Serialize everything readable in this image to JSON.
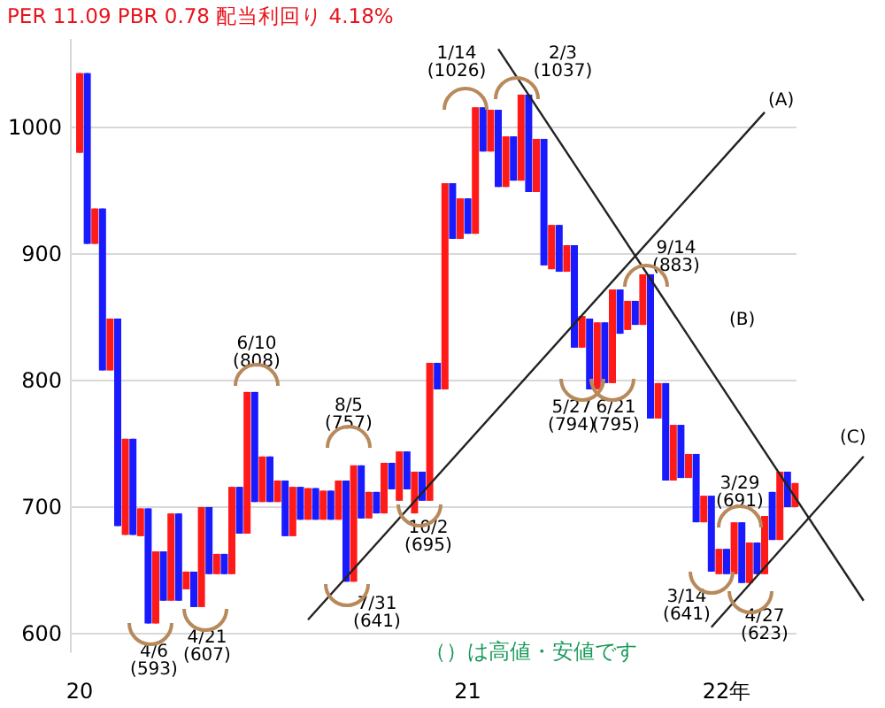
{
  "chart_data": {
    "type": "candlestick",
    "title": "PER 11.09 PBR 0.78 配当利回り 4.18%",
    "categories": [
      "20",
      null,
      null,
      null,
      null,
      null,
      null,
      null,
      null,
      null,
      null,
      null,
      null,
      null,
      null,
      null,
      null,
      null,
      null,
      null,
      null,
      null,
      null,
      null,
      null,
      null,
      null,
      null,
      null,
      null,
      null,
      null,
      null,
      null,
      null,
      null,
      null,
      null,
      null,
      null,
      null,
      null,
      null,
      null,
      null,
      null,
      null,
      null,
      null,
      null,
      null,
      "21",
      null,
      null,
      null,
      null,
      null,
      null,
      null,
      null,
      null,
      null,
      null,
      null,
      null,
      null,
      null,
      null,
      null,
      null,
      null,
      null,
      null,
      null,
      null,
      null,
      null,
      null,
      null,
      null,
      null,
      null,
      null,
      null,
      null,
      "22年",
      null,
      null,
      null,
      null,
      null,
      null,
      null,
      null,
      null,
      null,
      null,
      null,
      null,
      null,
      null,
      null,
      null,
      null
    ],
    "ohlc": [
      [
        980,
        1043,
        980,
        1043
      ],
      [
        1043,
        1043,
        908,
        908
      ],
      [
        908,
        936,
        908,
        936
      ],
      [
        936,
        936,
        808,
        808
      ],
      [
        808,
        849,
        808,
        849
      ],
      [
        849,
        849,
        685,
        685
      ],
      [
        678,
        754,
        678,
        754
      ],
      [
        754,
        754,
        678,
        678
      ],
      [
        677,
        699,
        677,
        699
      ],
      [
        699,
        699,
        608,
        608
      ],
      [
        608,
        665,
        608,
        665
      ],
      [
        665,
        665,
        626,
        626
      ],
      [
        626,
        695,
        626,
        695
      ],
      [
        695,
        695,
        626,
        626
      ],
      [
        635,
        649,
        635,
        649
      ],
      [
        649,
        649,
        621,
        621
      ],
      [
        621,
        700,
        621,
        700
      ],
      [
        700,
        700,
        647,
        647
      ],
      [
        647,
        663,
        647,
        663
      ],
      [
        663,
        663,
        647,
        647
      ],
      [
        647,
        716,
        647,
        716
      ],
      [
        716,
        716,
        679,
        679
      ],
      [
        679,
        791,
        679,
        791
      ],
      [
        791,
        791,
        704,
        704
      ],
      [
        704,
        740,
        704,
        740
      ],
      [
        740,
        740,
        704,
        704
      ],
      [
        704,
        721,
        704,
        721
      ],
      [
        721,
        721,
        677,
        677
      ],
      [
        677,
        716,
        677,
        716
      ],
      [
        716,
        716,
        690,
        690
      ],
      [
        690,
        715,
        690,
        715
      ],
      [
        715,
        715,
        690,
        690
      ],
      [
        690,
        713,
        690,
        713
      ],
      [
        713,
        713,
        690,
        690
      ],
      [
        690,
        721,
        690,
        721
      ],
      [
        721,
        721,
        641,
        641
      ],
      [
        641,
        733,
        641,
        733
      ],
      [
        733,
        733,
        691,
        691
      ],
      [
        691,
        712,
        691,
        712
      ],
      [
        712,
        712,
        695,
        695
      ],
      [
        695,
        735,
        695,
        735
      ],
      [
        735,
        735,
        714,
        714
      ],
      [
        705,
        744,
        705,
        744
      ],
      [
        744,
        744,
        714,
        714
      ],
      [
        695,
        728,
        695,
        728
      ],
      [
        728,
        728,
        705,
        705
      ],
      [
        705,
        814,
        705,
        814
      ],
      [
        814,
        814,
        793,
        793
      ],
      [
        793,
        956,
        793,
        956
      ],
      [
        956,
        956,
        912,
        912
      ],
      [
        912,
        944,
        912,
        944
      ],
      [
        944,
        944,
        916,
        916
      ],
      [
        916,
        1016,
        916,
        1016
      ],
      [
        1016,
        1016,
        981,
        981
      ],
      [
        981,
        1014,
        981,
        1014
      ],
      [
        1014,
        1014,
        953,
        953
      ],
      [
        953,
        993,
        953,
        993
      ],
      [
        993,
        993,
        958,
        958
      ],
      [
        958,
        1026,
        958,
        1026
      ],
      [
        1026,
        1026,
        949,
        949
      ],
      [
        949,
        991,
        949,
        991
      ],
      [
        991,
        991,
        891,
        891
      ],
      [
        888,
        923,
        888,
        923
      ],
      [
        923,
        923,
        886,
        886
      ],
      [
        886,
        907,
        886,
        907
      ],
      [
        907,
        907,
        826,
        826
      ],
      [
        826,
        851,
        826,
        851
      ],
      [
        849,
        849,
        793,
        793
      ],
      [
        793,
        846,
        793,
        846
      ],
      [
        846,
        846,
        798,
        798
      ],
      [
        798,
        872,
        798,
        872
      ],
      [
        872,
        872,
        837,
        837
      ],
      [
        840,
        863,
        840,
        863
      ],
      [
        863,
        863,
        844,
        844
      ],
      [
        844,
        884,
        844,
        884
      ],
      [
        884,
        884,
        770,
        770
      ],
      [
        770,
        798,
        770,
        798
      ],
      [
        798,
        798,
        721,
        721
      ],
      [
        721,
        765,
        721,
        765
      ],
      [
        765,
        765,
        723,
        723
      ],
      [
        723,
        742,
        723,
        742
      ],
      [
        742,
        742,
        688,
        688
      ],
      [
        688,
        709,
        688,
        709
      ],
      [
        709,
        709,
        649,
        649
      ],
      [
        647,
        667,
        647,
        667
      ],
      [
        667,
        667,
        647,
        647
      ],
      [
        647,
        688,
        647,
        688
      ],
      [
        688,
        688,
        640,
        640
      ],
      [
        640,
        672,
        640,
        672
      ],
      [
        672,
        672,
        647,
        647
      ],
      [
        647,
        693,
        647,
        693
      ],
      [
        712,
        712,
        674,
        674
      ],
      [
        674,
        728,
        674,
        728
      ],
      [
        728,
        728,
        700,
        700
      ],
      [
        700,
        719,
        700,
        719
      ],
      null,
      null,
      null,
      null,
      null,
      null,
      null,
      null,
      null
    ],
    "colors": [
      "#ff1a1a",
      "#1a1aff",
      "#ff1a1a",
      "#1a1aff",
      "#ff1a1a",
      "#1a1aff",
      "#ff1a1a",
      "#1a1aff",
      "#ff1a1a",
      "#1a1aff",
      "#ff1a1a",
      "#1a1aff",
      "#ff1a1a",
      "#1a1aff",
      "#ff1a1a",
      "#1a1aff",
      "#ff1a1a",
      "#1a1aff",
      "#ff1a1a",
      "#1a1aff",
      "#ff1a1a",
      "#1a1aff",
      "#ff1a1a",
      "#1a1aff",
      "#ff1a1a",
      "#1a1aff",
      "#ff1a1a",
      "#1a1aff",
      "#ff1a1a",
      "#1a1aff",
      "#ff1a1a",
      "#1a1aff",
      "#ff1a1a",
      "#1a1aff",
      "#ff1a1a",
      "#1a1aff",
      "#ff1a1a",
      "#1a1aff",
      "#ff1a1a",
      "#1a1aff",
      "#ff1a1a",
      "#1a1aff",
      "#ff1a1a",
      "#1a1aff",
      "#ff1a1a",
      "#1a1aff",
      "#ff1a1a",
      "#1a1aff",
      "#ff1a1a",
      "#1a1aff",
      "#ff1a1a",
      "#1a1aff",
      "#ff1a1a",
      "#1a1aff",
      "#ff1a1a",
      "#1a1aff",
      "#ff1a1a",
      "#1a1aff",
      "#ff1a1a",
      "#1a1aff",
      "#ff1a1a",
      "#1a1aff",
      "#ff1a1a",
      "#1a1aff",
      "#ff1a1a",
      "#1a1aff",
      "#ff1a1a",
      "#1a1aff",
      "#ff1a1a",
      "#1a1aff",
      "#ff1a1a",
      "#1a1aff",
      "#ff1a1a",
      "#1a1aff",
      "#ff1a1a",
      "#1a1aff",
      "#ff1a1a",
      "#1a1aff",
      "#ff1a1a",
      "#1a1aff",
      "#ff1a1a",
      "#1a1aff",
      "#ff1a1a",
      "#1a1aff",
      "#ff1a1a",
      "#1a1aff",
      "#ff1a1a",
      "#1a1aff",
      "#ff1a1a",
      "#1a1aff",
      "#ff1a1a",
      "#1a1aff",
      "#ff1a1a",
      "#1a1aff",
      "#ff1a1a",
      null,
      null,
      null,
      null,
      null,
      null,
      null,
      null,
      null
    ],
    "series": [
      {
        "name": "(A)",
        "type": "line",
        "color": "#222222",
        "values": [
          null,
          null,
          null,
          null,
          null,
          null,
          null,
          null,
          null,
          null,
          null,
          null,
          null,
          null,
          null,
          null,
          null,
          null,
          null,
          null,
          null,
          null,
          null,
          null,
          null,
          null,
          null,
          null,
          null,
          null,
          611,
          null,
          null,
          null,
          null,
          null,
          null,
          null,
          null,
          null,
          null,
          null,
          null,
          null,
          null,
          null,
          null,
          null,
          null,
          null,
          null,
          null,
          null,
          null,
          null,
          null,
          null,
          null,
          null,
          null,
          null,
          null,
          null,
          null,
          null,
          null,
          null,
          null,
          null,
          null,
          null,
          null,
          null,
          null,
          null,
          null,
          null,
          null,
          null,
          null,
          null,
          null,
          null,
          null,
          null,
          null,
          null,
          null,
          null,
          null,
          1012,
          null,
          null,
          null,
          null,
          null,
          null,
          null,
          null,
          null,
          null,
          null,
          null,
          null
        ]
      },
      {
        "name": "(B)",
        "type": "line",
        "color": "#222222",
        "values": [
          null,
          null,
          null,
          null,
          null,
          null,
          null,
          null,
          null,
          null,
          null,
          null,
          null,
          null,
          null,
          null,
          null,
          null,
          null,
          null,
          null,
          null,
          null,
          null,
          null,
          null,
          null,
          null,
          null,
          null,
          null,
          null,
          null,
          null,
          null,
          null,
          null,
          null,
          null,
          null,
          null,
          null,
          null,
          null,
          null,
          null,
          null,
          null,
          null,
          null,
          null,
          null,
          null,
          null,
          null,
          1062,
          null,
          null,
          null,
          null,
          null,
          null,
          null,
          null,
          null,
          null,
          null,
          null,
          null,
          null,
          null,
          null,
          null,
          null,
          null,
          null,
          null,
          null,
          null,
          null,
          null,
          null,
          null,
          null,
          null,
          null,
          null,
          null,
          null,
          null,
          null,
          null,
          null,
          null,
          null,
          null,
          null,
          null,
          null,
          null,
          null,
          null,
          null,
          626
        ]
      },
      {
        "name": "(C)",
        "type": "line",
        "color": "#222222",
        "values": [
          null,
          null,
          null,
          null,
          null,
          null,
          null,
          null,
          null,
          null,
          null,
          null,
          null,
          null,
          null,
          null,
          null,
          null,
          null,
          null,
          null,
          null,
          null,
          null,
          null,
          null,
          null,
          null,
          null,
          null,
          null,
          null,
          null,
          null,
          null,
          null,
          null,
          null,
          null,
          null,
          null,
          null,
          null,
          null,
          null,
          null,
          null,
          null,
          null,
          null,
          null,
          null,
          null,
          null,
          null,
          null,
          null,
          null,
          null,
          null,
          null,
          null,
          null,
          null,
          null,
          null,
          null,
          null,
          null,
          null,
          null,
          null,
          null,
          null,
          null,
          null,
          null,
          null,
          null,
          null,
          null,
          null,
          null,
          605,
          null,
          null,
          null,
          null,
          null,
          null,
          null,
          null,
          null,
          null,
          null,
          null,
          null,
          null,
          null,
          null,
          null,
          null,
          null,
          740
        ]
      }
    ],
    "ylim": [
      585,
      1070
    ],
    "yticks": [
      600,
      700,
      800,
      900,
      1000
    ],
    "grid": "y",
    "annotations": [
      "4/6\n(593)",
      "4/21\n(607)",
      "6/10\n(808)",
      "7/31\n(641)",
      "8/5\n(757)",
      "10/2\n(695)",
      "1/14\n(1026)",
      "2/3\n(1037)",
      "5/27\n(794)",
      "6/21\n(795)",
      "9/14\n(883)",
      "3/14\n(641)",
      "3/29\n(691)",
      "4/27\n(623)",
      "（）は高値・安値です"
    ]
  }
}
